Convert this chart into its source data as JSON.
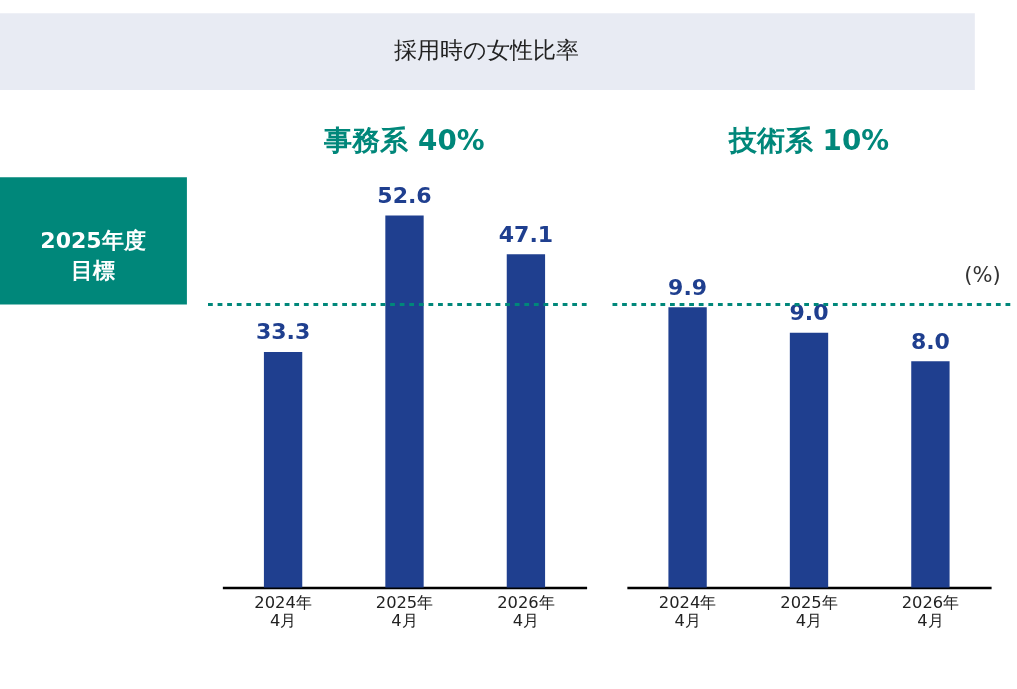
{
  "chart_data": [
    {
      "type": "bar",
      "title": "事務系 40%",
      "categories": [
        "2024年\n4月",
        "2025年\n4月",
        "2026年\n4月"
      ],
      "values": [
        33.3,
        52.6,
        47.1
      ],
      "color": "#1f3f8f",
      "data_labels": true,
      "grid": false,
      "tick_labels": "x",
      "ref_lines": [
        {
          "axis": "y",
          "value": 40,
          "label": "2025年度目標",
          "color": "#00877a",
          "line_style": "dashed"
        }
      ],
      "annotations": [
        "採用時の女性比率"
      ]
    },
    {
      "type": "bar",
      "title": "技術系 10%",
      "categories": [
        "2024年\n4月",
        "2025年\n4月",
        "2026年\n4月"
      ],
      "values": [
        9.9,
        9.0,
        8.0
      ],
      "color": "#1f3f8f",
      "grid": false,
      "tick_labels": "x",
      "value_labels": [
        "9.9",
        "9.0",
        "8.0"
      ],
      "ref_lines": [
        {
          "axis": "y",
          "value": 10,
          "label": null,
          "color": "#00877a",
          "line_style": "dashed"
        }
      ],
      "annotations": [
        "(%)"
      ]
    }
  ]
}
